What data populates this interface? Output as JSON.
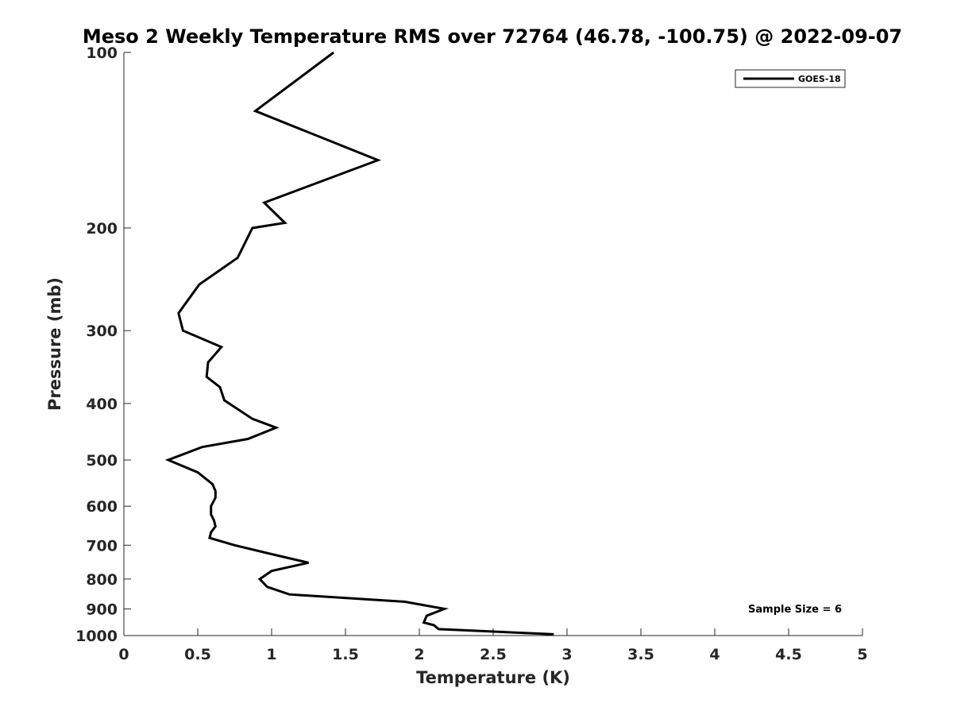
{
  "chart_data": {
    "type": "line",
    "title": "Meso 2 Weekly Temperature RMS over 72764 (46.78, -100.75) @ 2022-09-07",
    "xlabel": "Temperature (K)",
    "ylabel": "Pressure (mb)",
    "xlim": [
      0,
      5
    ],
    "ylim": [
      100,
      1000
    ],
    "y_scale": "log",
    "y_reversed": true,
    "grid": false,
    "x_ticks": [
      "0",
      "0.5",
      "1",
      "1.5",
      "2",
      "2.5",
      "3",
      "3.5",
      "4",
      "4.5",
      "5"
    ],
    "y_ticks": [
      "100",
      "200",
      "300",
      "400",
      "500",
      "600",
      "700",
      "800",
      "900",
      "1000"
    ],
    "legend": {
      "position": "top-right",
      "entries": [
        "GOES-18"
      ]
    },
    "annotation": "Sample Size = 6",
    "series": [
      {
        "name": "GOES-18",
        "color": "#000000",
        "points": [
          [
            1.42,
            100
          ],
          [
            0.89,
            126
          ],
          [
            1.72,
            153
          ],
          [
            0.95,
            181
          ],
          [
            1.09,
            196
          ],
          [
            0.87,
            200
          ],
          [
            0.77,
            225
          ],
          [
            0.51,
            250
          ],
          [
            0.37,
            280
          ],
          [
            0.4,
            300
          ],
          [
            0.66,
            320
          ],
          [
            0.57,
            340
          ],
          [
            0.56,
            360
          ],
          [
            0.65,
            375
          ],
          [
            0.68,
            395
          ],
          [
            0.87,
            425
          ],
          [
            1.03,
            440
          ],
          [
            0.84,
            460
          ],
          [
            0.53,
            475
          ],
          [
            0.3,
            500
          ],
          [
            0.5,
            525
          ],
          [
            0.6,
            550
          ],
          [
            0.62,
            565
          ],
          [
            0.62,
            580
          ],
          [
            0.59,
            600
          ],
          [
            0.59,
            620
          ],
          [
            0.61,
            635
          ],
          [
            0.62,
            650
          ],
          [
            0.59,
            665
          ],
          [
            0.58,
            680
          ],
          [
            0.75,
            700
          ],
          [
            1.0,
            725
          ],
          [
            1.25,
            750
          ],
          [
            1.0,
            775
          ],
          [
            0.92,
            800
          ],
          [
            0.97,
            825
          ],
          [
            1.12,
            850
          ],
          [
            1.9,
            875
          ],
          [
            2.17,
            900
          ],
          [
            2.05,
            925
          ],
          [
            2.03,
            950
          ],
          [
            2.1,
            960
          ],
          [
            2.13,
            975
          ],
          [
            2.91,
            995
          ]
        ]
      }
    ]
  }
}
